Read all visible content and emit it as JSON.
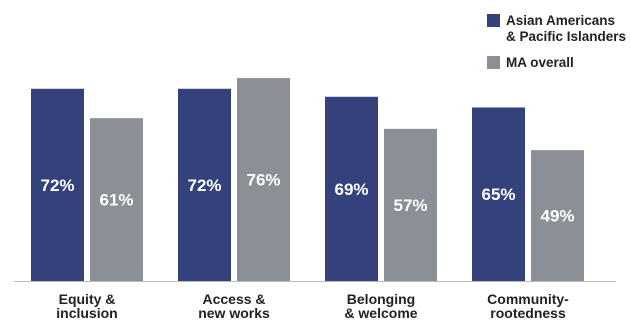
{
  "chart_data": {
    "type": "bar",
    "categories": [
      [
        "Equity &",
        "inclusion"
      ],
      [
        "Access &",
        "new works"
      ],
      [
        "Belonging",
        "& welcome"
      ],
      [
        "Community-",
        "rootedness"
      ]
    ],
    "series": [
      {
        "name": "Asian Americans & Pacific Islanders",
        "legend_lines": [
          "Asian Americans",
          "& Pacific Islanders"
        ],
        "values": [
          72,
          72,
          69,
          65
        ],
        "labels": [
          "72%",
          "72%",
          "69%",
          "65%"
        ]
      },
      {
        "name": "MA overall",
        "legend_lines": [
          "MA overall"
        ],
        "values": [
          61,
          76,
          57,
          49
        ],
        "labels": [
          "61%",
          "76%",
          "57%",
          "49%"
        ]
      }
    ],
    "ylim": [
      0,
      100
    ],
    "grid": false,
    "legend": "top-right",
    "colors": [
      "#34417a",
      "#8b9097"
    ],
    "axis_color": "#bbbbbb"
  }
}
